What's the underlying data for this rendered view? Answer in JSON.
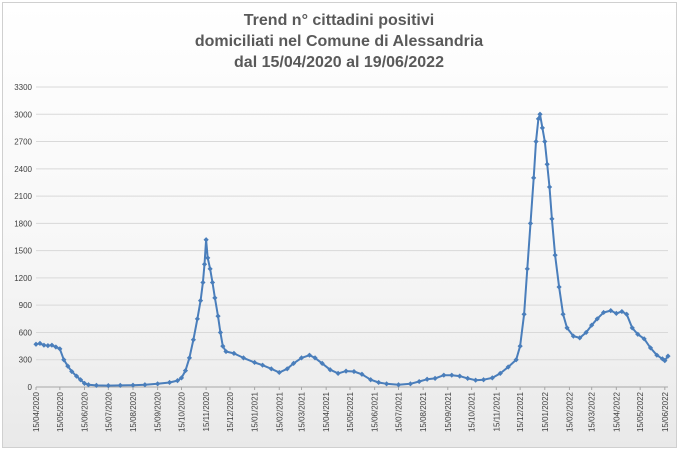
{
  "chart_data": {
    "type": "line",
    "title_lines": [
      "Trend n° cittadini positivi",
      "domiciliati nel Comune di Alessandria",
      "dal 15/04/2020 al 19/06/2022"
    ],
    "xlabel": "",
    "ylabel": "",
    "ylim": [
      0,
      3300
    ],
    "yticks": [
      0,
      300,
      600,
      900,
      1200,
      1500,
      1800,
      2100,
      2400,
      2700,
      3000,
      3300
    ],
    "x_range": [
      "2020-04-15",
      "2022-06-19"
    ],
    "x_tick_labels": [
      "15/04/2020",
      "15/05/2020",
      "15/06/2020",
      "15/07/2020",
      "15/08/2020",
      "15/09/2020",
      "15/10/2020",
      "15/11/2020",
      "15/12/2020",
      "15/01/2021",
      "15/02/2021",
      "15/03/2021",
      "15/04/2021",
      "15/05/2021",
      "15/06/2021",
      "15/07/2021",
      "15/08/2021",
      "15/09/2021",
      "15/10/2021",
      "15/11/2021",
      "15/12/2021",
      "15/01/2022",
      "15/02/2022",
      "15/03/2022",
      "15/04/2022",
      "15/05/2022",
      "15/06/2022"
    ],
    "grid": "horizontal",
    "legend": "none",
    "series": [
      {
        "color": "#4a7ebb",
        "marker": "diamond",
        "points": [
          [
            "2020-04-15",
            470
          ],
          [
            "2020-04-20",
            480
          ],
          [
            "2020-04-25",
            460
          ],
          [
            "2020-04-30",
            455
          ],
          [
            "2020-05-05",
            460
          ],
          [
            "2020-05-10",
            440
          ],
          [
            "2020-05-15",
            420
          ],
          [
            "2020-05-20",
            300
          ],
          [
            "2020-05-25",
            230
          ],
          [
            "2020-05-30",
            170
          ],
          [
            "2020-06-05",
            120
          ],
          [
            "2020-06-10",
            80
          ],
          [
            "2020-06-15",
            40
          ],
          [
            "2020-06-20",
            25
          ],
          [
            "2020-06-30",
            18
          ],
          [
            "2020-07-15",
            15
          ],
          [
            "2020-07-30",
            18
          ],
          [
            "2020-08-15",
            20
          ],
          [
            "2020-08-30",
            25
          ],
          [
            "2020-09-15",
            35
          ],
          [
            "2020-09-30",
            50
          ],
          [
            "2020-10-10",
            70
          ],
          [
            "2020-10-15",
            100
          ],
          [
            "2020-10-20",
            180
          ],
          [
            "2020-10-25",
            320
          ],
          [
            "2020-10-30",
            520
          ],
          [
            "2020-11-04",
            750
          ],
          [
            "2020-11-08",
            950
          ],
          [
            "2020-11-11",
            1150
          ],
          [
            "2020-11-13",
            1350
          ],
          [
            "2020-11-15",
            1620
          ],
          [
            "2020-11-17",
            1420
          ],
          [
            "2020-11-20",
            1300
          ],
          [
            "2020-11-23",
            1150
          ],
          [
            "2020-11-26",
            980
          ],
          [
            "2020-11-30",
            780
          ],
          [
            "2020-12-03",
            600
          ],
          [
            "2020-12-06",
            450
          ],
          [
            "2020-12-10",
            390
          ],
          [
            "2020-12-20",
            370
          ],
          [
            "2021-01-01",
            320
          ],
          [
            "2021-01-15",
            270
          ],
          [
            "2021-01-25",
            240
          ],
          [
            "2021-02-05",
            200
          ],
          [
            "2021-02-15",
            160
          ],
          [
            "2021-02-25",
            200
          ],
          [
            "2021-03-05",
            260
          ],
          [
            "2021-03-15",
            320
          ],
          [
            "2021-03-25",
            350
          ],
          [
            "2021-04-01",
            320
          ],
          [
            "2021-04-10",
            260
          ],
          [
            "2021-04-20",
            190
          ],
          [
            "2021-04-30",
            150
          ],
          [
            "2021-05-10",
            175
          ],
          [
            "2021-05-20",
            170
          ],
          [
            "2021-05-30",
            140
          ],
          [
            "2021-06-10",
            80
          ],
          [
            "2021-06-20",
            50
          ],
          [
            "2021-06-30",
            35
          ],
          [
            "2021-07-15",
            25
          ],
          [
            "2021-07-30",
            35
          ],
          [
            "2021-08-10",
            60
          ],
          [
            "2021-08-20",
            85
          ],
          [
            "2021-08-30",
            95
          ],
          [
            "2021-09-10",
            130
          ],
          [
            "2021-09-20",
            130
          ],
          [
            "2021-09-30",
            120
          ],
          [
            "2021-10-10",
            95
          ],
          [
            "2021-10-20",
            75
          ],
          [
            "2021-10-30",
            80
          ],
          [
            "2021-11-10",
            100
          ],
          [
            "2021-11-20",
            150
          ],
          [
            "2021-11-30",
            220
          ],
          [
            "2021-12-10",
            300
          ],
          [
            "2021-12-15",
            450
          ],
          [
            "2021-12-20",
            800
          ],
          [
            "2021-12-24",
            1300
          ],
          [
            "2021-12-28",
            1800
          ],
          [
            "2022-01-01",
            2300
          ],
          [
            "2022-01-04",
            2700
          ],
          [
            "2022-01-07",
            2950
          ],
          [
            "2022-01-09",
            3000
          ],
          [
            "2022-01-12",
            2850
          ],
          [
            "2022-01-15",
            2700
          ],
          [
            "2022-01-18",
            2450
          ],
          [
            "2022-01-21",
            2200
          ],
          [
            "2022-01-24",
            1850
          ],
          [
            "2022-01-28",
            1450
          ],
          [
            "2022-02-02",
            1100
          ],
          [
            "2022-02-07",
            800
          ],
          [
            "2022-02-12",
            650
          ],
          [
            "2022-02-20",
            560
          ],
          [
            "2022-02-28",
            540
          ],
          [
            "2022-03-08",
            600
          ],
          [
            "2022-03-15",
            680
          ],
          [
            "2022-03-22",
            750
          ],
          [
            "2022-03-30",
            820
          ],
          [
            "2022-04-08",
            840
          ],
          [
            "2022-04-15",
            810
          ],
          [
            "2022-04-22",
            830
          ],
          [
            "2022-04-28",
            800
          ],
          [
            "2022-05-05",
            650
          ],
          [
            "2022-05-12",
            580
          ],
          [
            "2022-05-20",
            530
          ],
          [
            "2022-05-28",
            430
          ],
          [
            "2022-06-05",
            350
          ],
          [
            "2022-06-12",
            310
          ],
          [
            "2022-06-15",
            290
          ],
          [
            "2022-06-19",
            340
          ]
        ]
      }
    ]
  },
  "colors": {
    "line": "#4a7ebb",
    "marker": "#4a7ebb",
    "title": "#595959",
    "grid": "#d9d9d9"
  }
}
